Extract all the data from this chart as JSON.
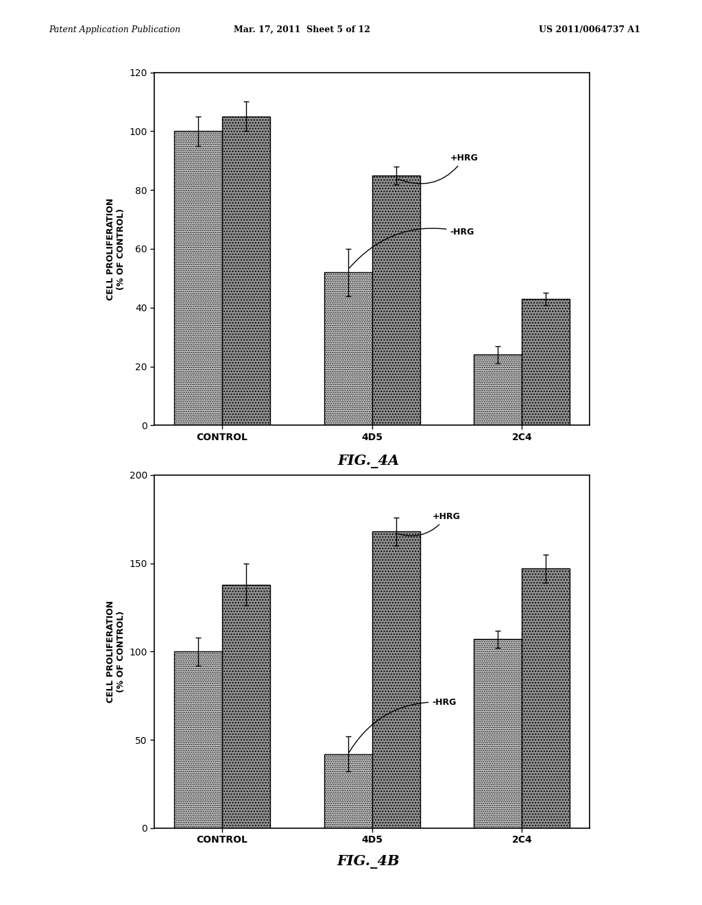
{
  "fig4a": {
    "categories": [
      "CONTROL",
      "4D5",
      "2C4"
    ],
    "minus_hrg": [
      100,
      52,
      24
    ],
    "plus_hrg": [
      105,
      85,
      43
    ],
    "minus_hrg_err": [
      5,
      8,
      3
    ],
    "plus_hrg_err": [
      5,
      3,
      2
    ],
    "ylim": [
      0,
      120
    ],
    "yticks": [
      0,
      20,
      40,
      60,
      80,
      100,
      120
    ],
    "ylabel": "CELL PROLIFERATION\n(% OF CONTROL)",
    "title": "FIG._4A"
  },
  "fig4b": {
    "categories": [
      "CONTROL",
      "4D5",
      "2C4"
    ],
    "minus_hrg": [
      100,
      42,
      107
    ],
    "plus_hrg": [
      138,
      168,
      147
    ],
    "minus_hrg_err": [
      8,
      10,
      5
    ],
    "plus_hrg_err": [
      12,
      8,
      8
    ],
    "ylim": [
      0,
      200
    ],
    "yticks": [
      0,
      50,
      100,
      150,
      200
    ],
    "ylabel": "CELL PROLIFERATION\n(% OF CONTROL)",
    "title": "FIG._4B"
  },
  "bar_width": 0.32,
  "light_color": "#e0e0e0",
  "dark_color": "#909090",
  "header_left": "Patent Application Publication",
  "header_mid": "Mar. 17, 2011  Sheet 5 of 12",
  "header_right": "US 2011/0064737 A1",
  "background_color": "#ffffff",
  "edge_color": "#000000"
}
